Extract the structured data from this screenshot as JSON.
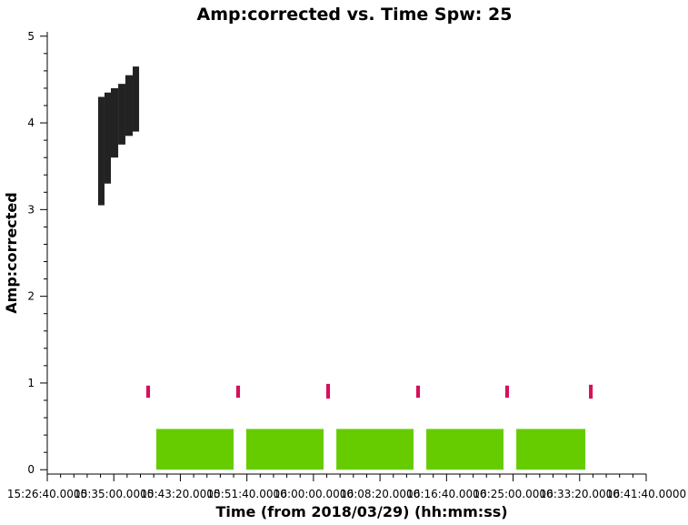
{
  "chart_data": {
    "type": "scatter",
    "title": "Amp:corrected vs. Time Spw: 25",
    "xlabel": "Time (from 2018/03/29) (hh:mm:ss)",
    "ylabel": "Amp:corrected",
    "xlim": [
      0,
      4500
    ],
    "ylim": [
      -0.05,
      5.05
    ],
    "xticks": [
      {
        "value": 0,
        "label": "15:26:40.0000"
      },
      {
        "value": 500,
        "label": "15:35:00.0000"
      },
      {
        "value": 1000,
        "label": "15:43:20.0000"
      },
      {
        "value": 1500,
        "label": "15:51:40.0000"
      },
      {
        "value": 2000,
        "label": "16:00:00.0000"
      },
      {
        "value": 2500,
        "label": "16:08:20.0000"
      },
      {
        "value": 3000,
        "label": "16:16:40.0000"
      },
      {
        "value": 3500,
        "label": "16:25:00.0000"
      },
      {
        "value": 4000,
        "label": "16:33:20.0000"
      },
      {
        "value": 4500,
        "label": "16:41:40.0000"
      }
    ],
    "yticks": [
      0,
      1,
      2,
      3,
      4,
      5
    ],
    "series": [
      {
        "color": "#222222",
        "x_start": [
          382,
          430,
          478,
          533,
          587,
          642
        ],
        "x_end": [
          430,
          478,
          533,
          587,
          642,
          690
        ],
        "y_min": [
          3.05,
          3.3,
          3.6,
          3.75,
          3.85,
          3.9
        ],
        "y_max": [
          4.3,
          4.35,
          4.4,
          4.45,
          4.55,
          4.65
        ]
      },
      {
        "color": "#d6105a",
        "x_start": [
          744,
          1420,
          2096,
          2772,
          3441,
          4070
        ],
        "x_end": [
          772,
          1448,
          2124,
          2800,
          3469,
          4098
        ],
        "y_min": [
          0.83,
          0.83,
          0.82,
          0.83,
          0.83,
          0.82
        ],
        "y_max": [
          0.97,
          0.97,
          0.99,
          0.97,
          0.97,
          0.98
        ]
      },
      {
        "color": "#66cc00",
        "x_start": [
          819,
          1495,
          2172,
          2848,
          3524
        ],
        "x_end": [
          1400,
          2076,
          2752,
          3428,
          4043
        ],
        "y_min": [
          0,
          0,
          0,
          0,
          0
        ],
        "y_max": [
          0.47,
          0.47,
          0.47,
          0.47,
          0.47
        ]
      }
    ]
  }
}
